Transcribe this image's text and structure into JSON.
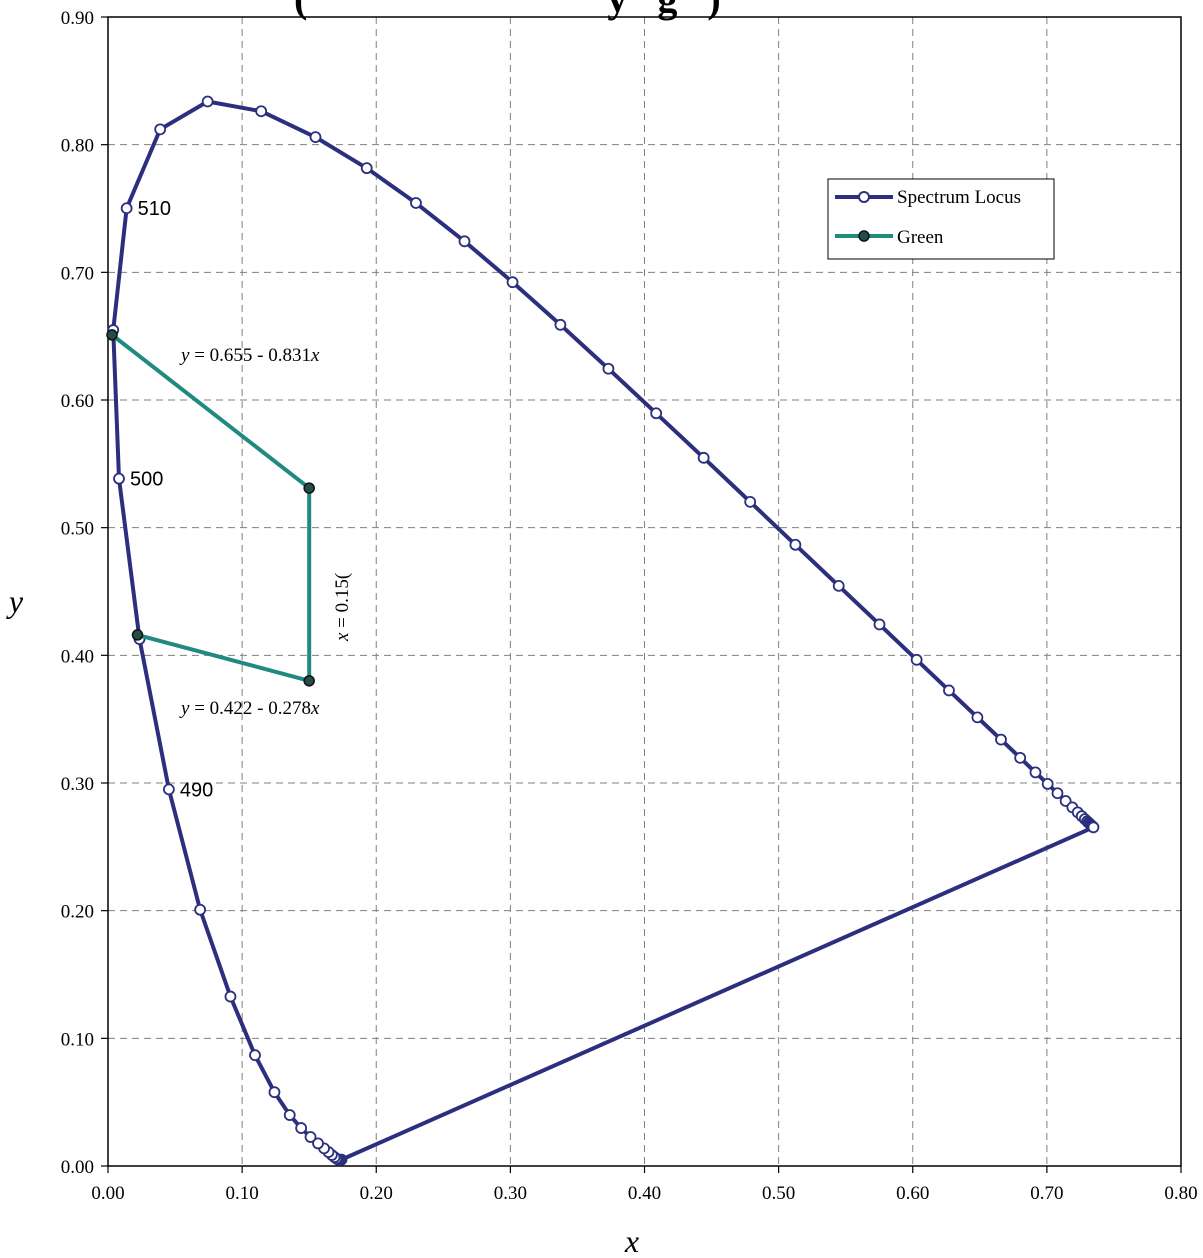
{
  "chart_data": {
    "type": "scatter",
    "title": "(                              y   g   )",
    "xlabel": "x",
    "ylabel": "y",
    "xlim": [
      0,
      0.8
    ],
    "ylim": [
      0,
      0.9
    ],
    "x_ticks": [
      "0.00",
      "0.10",
      "0.20",
      "0.30",
      "0.40",
      "0.50",
      "0.60",
      "0.70",
      "0.80"
    ],
    "y_ticks": [
      "0.00",
      "0.10",
      "0.20",
      "0.30",
      "0.40",
      "0.50",
      "0.60",
      "0.70",
      "0.80",
      "0.90"
    ],
    "grid": true,
    "legend_position": "top-right",
    "colors": {
      "spectrum": "#2b2f7e",
      "green": "#1f8a80",
      "green_marker_fill": "#244c49",
      "grid": "#808080"
    },
    "series": [
      {
        "name": "Spectrum Locus",
        "closed": true,
        "points": [
          [
            0.1741,
            0.005
          ],
          [
            0.1738,
            0.0049
          ],
          [
            0.1736,
            0.0049
          ],
          [
            0.1733,
            0.0048
          ],
          [
            0.173,
            0.0048
          ],
          [
            0.1726,
            0.0048
          ],
          [
            0.1721,
            0.0048
          ],
          [
            0.1714,
            0.0051
          ],
          [
            0.1703,
            0.0058
          ],
          [
            0.1689,
            0.0069
          ],
          [
            0.1669,
            0.0086
          ],
          [
            0.1644,
            0.0109
          ],
          [
            0.1611,
            0.0138
          ],
          [
            0.1566,
            0.0177
          ],
          [
            0.151,
            0.0227
          ],
          [
            0.144,
            0.0297
          ],
          [
            0.1355,
            0.0399
          ],
          [
            0.1241,
            0.0578
          ],
          [
            0.1096,
            0.0868
          ],
          [
            0.0913,
            0.1327
          ],
          [
            0.0687,
            0.2007
          ],
          [
            0.0454,
            0.295
          ],
          [
            0.0235,
            0.4127
          ],
          [
            0.0082,
            0.5384
          ],
          [
            0.0039,
            0.6548
          ],
          [
            0.0139,
            0.7502
          ],
          [
            0.0389,
            0.812
          ],
          [
            0.0743,
            0.8338
          ],
          [
            0.1142,
            0.8262
          ],
          [
            0.1547,
            0.8059
          ],
          [
            0.1929,
            0.7816
          ],
          [
            0.2296,
            0.7543
          ],
          [
            0.2658,
            0.7243
          ],
          [
            0.3016,
            0.6923
          ],
          [
            0.3373,
            0.6589
          ],
          [
            0.3731,
            0.6245
          ],
          [
            0.4087,
            0.5896
          ],
          [
            0.4441,
            0.5547
          ],
          [
            0.4788,
            0.5202
          ],
          [
            0.5125,
            0.4866
          ],
          [
            0.5448,
            0.4544
          ],
          [
            0.5752,
            0.4242
          ],
          [
            0.6029,
            0.3965
          ],
          [
            0.627,
            0.3725
          ],
          [
            0.6482,
            0.3514
          ],
          [
            0.6658,
            0.334
          ],
          [
            0.6801,
            0.3197
          ],
          [
            0.6915,
            0.3083
          ],
          [
            0.7006,
            0.2993
          ],
          [
            0.7079,
            0.292
          ],
          [
            0.714,
            0.2859
          ],
          [
            0.719,
            0.2809
          ],
          [
            0.723,
            0.277
          ],
          [
            0.726,
            0.274
          ],
          [
            0.7283,
            0.2717
          ],
          [
            0.73,
            0.27
          ],
          [
            0.7311,
            0.2689
          ],
          [
            0.732,
            0.268
          ],
          [
            0.7327,
            0.2673
          ],
          [
            0.7334,
            0.2666
          ],
          [
            0.734,
            0.266
          ],
          [
            0.7344,
            0.2656
          ],
          [
            0.7346,
            0.2654
          ],
          [
            0.7347,
            0.2653
          ]
        ]
      },
      {
        "name": "Green",
        "closed": false,
        "points": [
          [
            0.003,
            0.651
          ],
          [
            0.15,
            0.531
          ],
          [
            0.15,
            0.38
          ],
          [
            0.022,
            0.416
          ]
        ]
      }
    ],
    "annotations": [
      {
        "text": "510",
        "x": 0.0139,
        "y": 0.7502
      },
      {
        "text": "500",
        "x": 0.0082,
        "y": 0.5384
      },
      {
        "text": "490",
        "x": 0.0454,
        "y": 0.295
      }
    ],
    "equations": {
      "upper": {
        "y": "y",
        "rest": " = 0.655 - 0.831",
        "x": "x"
      },
      "lower": {
        "y": "y",
        "rest": " = 0.422 - 0.278",
        "x": "x"
      },
      "vertical": {
        "x": "x",
        "rest": " = 0.15("
      }
    }
  }
}
